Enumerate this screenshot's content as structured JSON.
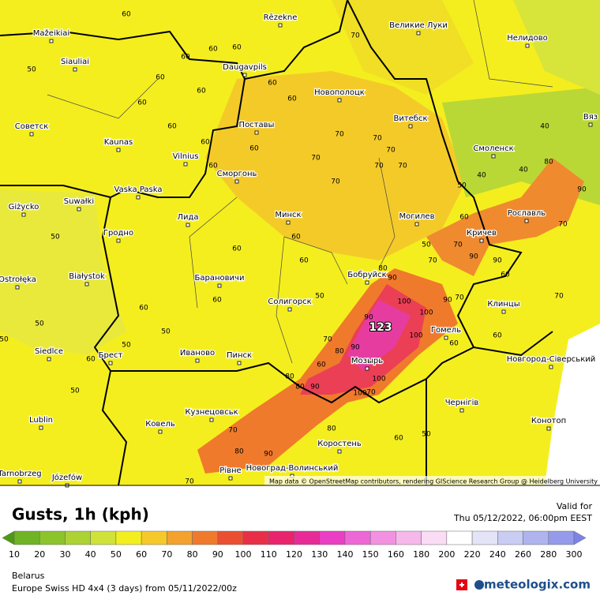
{
  "map": {
    "cities": [
      "Mažeikiai",
      "Rēzekne",
      "Великие Луки",
      "Нелидово",
      "Siauliai",
      "Daugavpils",
      "Новополоцк",
      "Советск",
      "Поставы",
      "Витебск",
      "Вяз",
      "Kaunas",
      "Смоленск",
      "Vilnius",
      "Сморгонь",
      "Vaska Paska",
      "Giżycko",
      "Suwałki",
      "Минск",
      "Могилев",
      "Рославль",
      "Лида",
      "Гродно",
      "Кричев",
      "Białystok",
      "Ostrołęka",
      "Барановичи",
      "Бобруйск",
      "Солигорск",
      "Клинцы",
      "Гомель",
      "Siedlce",
      "Брест",
      "Иваново",
      "Пинск",
      "Новгород-Сіверський",
      "Мозырь",
      "Lublin",
      "Ковель",
      "Кузнецовськ",
      "Чернігів",
      "Конотоп",
      "Коростень",
      "Новоград-Волинський",
      "Tarnobrzeg",
      "Рівне",
      "Józefów"
    ],
    "max_label": "123",
    "contour_labels": [
      60,
      60,
      60,
      70,
      60,
      60,
      50,
      60,
      60,
      60,
      60,
      70,
      70,
      70,
      70,
      70,
      70,
      70,
      60,
      60,
      60,
      60,
      60,
      60,
      50,
      60,
      60,
      60,
      50,
      50,
      50,
      50,
      50,
      60,
      50,
      40,
      40,
      40,
      50,
      60,
      70,
      90,
      90,
      80,
      90,
      70,
      60,
      70,
      80,
      90,
      100,
      100,
      100,
      90,
      90,
      80,
      70,
      60,
      80,
      90,
      100,
      100,
      70,
      60,
      80,
      70,
      80,
      90,
      80,
      70,
      50,
      60,
      70,
      60,
      90,
      70,
      50
    ],
    "attribution": "Map data © OpenStreetMap contributors, rendering GIScience Research Group @ Heidelberg University"
  },
  "footer": {
    "title": "Gusts, 1h (kph)",
    "valid_label": "Valid for",
    "valid_time": "Thu 05/12/2022, 06:00pm EEST",
    "legend": {
      "values": [
        10,
        20,
        30,
        40,
        50,
        60,
        70,
        80,
        90,
        100,
        110,
        120,
        130,
        140,
        150,
        160,
        180,
        200,
        220,
        240,
        260,
        280,
        300
      ],
      "colors": [
        "#4e9a12",
        "#6fb424",
        "#8cc42c",
        "#acd234",
        "#cfe23a",
        "#f3ef1e",
        "#f6c92a",
        "#f3a22f",
        "#f07a2c",
        "#eb4f31",
        "#e92f48",
        "#e8246c",
        "#e72a98",
        "#ea3fc3",
        "#ee67d6",
        "#f291e1",
        "#f6b8eb",
        "#fadcf4",
        "#ffffff",
        "#e3e4f8",
        "#c9ccf3",
        "#afb4ef",
        "#959bea",
        "#7d83e6"
      ]
    },
    "region": "Belarus",
    "model": "Europe Swiss HD 4x4 (3 days) from 05/11/2022/00z",
    "brand": "meteologix.com"
  }
}
